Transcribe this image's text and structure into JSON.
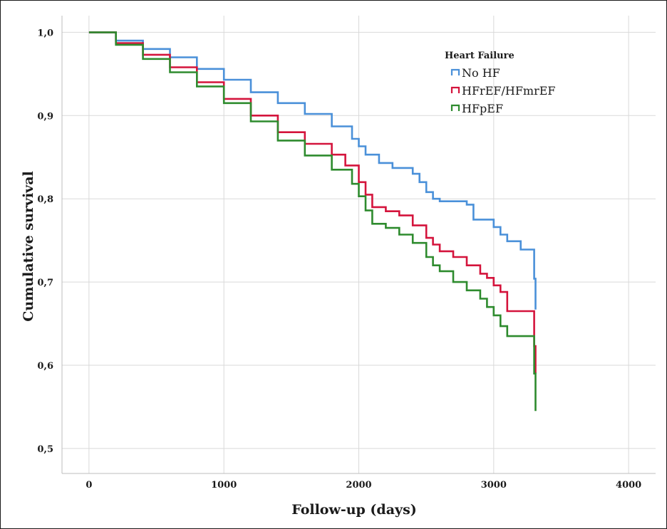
{
  "chart_data": {
    "type": "line",
    "xlabel": "Follow-up (days)",
    "ylabel": "Cumulative survival",
    "xlim": [
      -200,
      4200
    ],
    "ylim": [
      0.47,
      1.02
    ],
    "x_ticks": [
      0,
      1000,
      2000,
      3000,
      4000
    ],
    "x_tick_labels": [
      "0",
      "1000",
      "2000",
      "3000",
      "4000"
    ],
    "y_ticks": [
      0.5,
      0.6,
      0.7,
      0.8,
      0.9,
      1.0
    ],
    "y_tick_labels": [
      "0,5",
      "0,6",
      "0,7",
      "0,8",
      "0,9",
      "1,0"
    ],
    "grid": true,
    "legend": {
      "title": "Heart Failure",
      "position": "top-right"
    },
    "series": [
      {
        "name": "No HF",
        "color": "#4a90d9",
        "x": [
          0,
          200,
          400,
          600,
          800,
          1000,
          1200,
          1400,
          1600,
          1800,
          1950,
          2000,
          2050,
          2150,
          2250,
          2400,
          2450,
          2500,
          2550,
          2600,
          2700,
          2800,
          2850,
          3000,
          3050,
          3100,
          3200,
          3280,
          3300,
          3310
        ],
        "values": [
          1.0,
          0.99,
          0.98,
          0.97,
          0.956,
          0.943,
          0.928,
          0.915,
          0.902,
          0.887,
          0.872,
          0.863,
          0.853,
          0.843,
          0.837,
          0.83,
          0.82,
          0.808,
          0.8,
          0.797,
          0.797,
          0.793,
          0.775,
          0.766,
          0.757,
          0.749,
          0.739,
          0.739,
          0.704,
          0.667
        ]
      },
      {
        "name": "HFrEF/HFmrEF",
        "color": "#d4143c",
        "x": [
          0,
          200,
          400,
          600,
          800,
          1000,
          1200,
          1400,
          1600,
          1800,
          1900,
          2000,
          2050,
          2100,
          2200,
          2300,
          2400,
          2500,
          2550,
          2600,
          2700,
          2800,
          2900,
          2950,
          3000,
          3050,
          3100,
          3280,
          3300,
          3310
        ],
        "values": [
          1.0,
          0.987,
          0.973,
          0.958,
          0.94,
          0.92,
          0.9,
          0.88,
          0.866,
          0.853,
          0.84,
          0.82,
          0.805,
          0.79,
          0.785,
          0.78,
          0.768,
          0.753,
          0.745,
          0.737,
          0.73,
          0.72,
          0.71,
          0.705,
          0.696,
          0.688,
          0.665,
          0.665,
          0.623,
          0.59
        ]
      },
      {
        "name": "HFpEF",
        "color": "#2e8b2e",
        "x": [
          0,
          200,
          400,
          600,
          800,
          1000,
          1200,
          1400,
          1600,
          1800,
          1950,
          2000,
          2050,
          2100,
          2200,
          2300,
          2400,
          2500,
          2550,
          2600,
          2700,
          2800,
          2900,
          2950,
          3000,
          3050,
          3100,
          3280,
          3300,
          3310
        ],
        "values": [
          1.0,
          0.985,
          0.968,
          0.952,
          0.935,
          0.915,
          0.893,
          0.87,
          0.852,
          0.835,
          0.818,
          0.803,
          0.786,
          0.77,
          0.765,
          0.757,
          0.747,
          0.73,
          0.72,
          0.713,
          0.7,
          0.69,
          0.68,
          0.67,
          0.66,
          0.647,
          0.635,
          0.635,
          0.59,
          0.545
        ]
      }
    ]
  }
}
